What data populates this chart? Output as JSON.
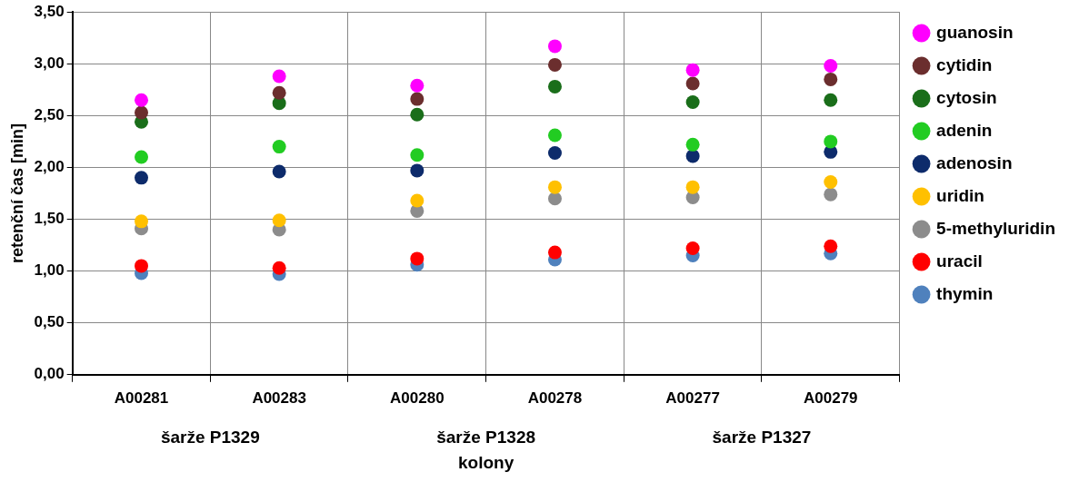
{
  "chart_data": {
    "type": "scatter",
    "xlabel": "kolony",
    "ylabel": "retenční čas [min]",
    "categories": [
      "A00281",
      "A00283",
      "A00280",
      "A00278",
      "A00277",
      "A00279"
    ],
    "series": [
      {
        "name": "guanosin",
        "color": "#ff00ff",
        "values": [
          2.65,
          2.88,
          2.79,
          3.17,
          2.94,
          2.98
        ]
      },
      {
        "name": "cytidin",
        "color": "#6b2e2e",
        "values": [
          2.53,
          2.72,
          2.66,
          2.99,
          2.81,
          2.85
        ]
      },
      {
        "name": "cytosin",
        "color": "#1a6e1a",
        "values": [
          2.44,
          2.62,
          2.51,
          2.78,
          2.63,
          2.65
        ]
      },
      {
        "name": "adenin",
        "color": "#22cc22",
        "values": [
          2.1,
          2.2,
          2.12,
          2.31,
          2.22,
          2.25
        ]
      },
      {
        "name": "adenosin",
        "color": "#0d2b6b",
        "values": [
          1.9,
          1.96,
          1.97,
          2.14,
          2.11,
          2.15
        ]
      },
      {
        "name": "uridin",
        "color": "#ffc000",
        "values": [
          1.48,
          1.49,
          1.68,
          1.81,
          1.81,
          1.86
        ]
      },
      {
        "name": "5-methyluridin",
        "color": "#8c8c8c",
        "values": [
          1.41,
          1.4,
          1.58,
          1.7,
          1.71,
          1.74
        ]
      },
      {
        "name": "uracil",
        "color": "#ff0000",
        "values": [
          1.05,
          1.03,
          1.12,
          1.18,
          1.22,
          1.24
        ]
      },
      {
        "name": "thymin",
        "color": "#4f81bd",
        "values": [
          0.98,
          0.97,
          1.06,
          1.11,
          1.15,
          1.17
        ]
      }
    ],
    "ylim": [
      0,
      3.5
    ],
    "yticks": [
      {
        "value": 0,
        "label": "0,00"
      },
      {
        "value": 0.5,
        "label": "0,50"
      },
      {
        "value": 1,
        "label": "1,00"
      },
      {
        "value": 1.5,
        "label": "1,50"
      },
      {
        "value": 2,
        "label": "2,00"
      },
      {
        "value": 2.5,
        "label": "2,50"
      },
      {
        "value": 3,
        "label": "3,00"
      },
      {
        "value": 3.5,
        "label": "3,50"
      }
    ],
    "annotations": [
      "šarže P1329",
      "šarže P1328",
      "šarže P1327"
    ],
    "grid": true,
    "legend": "right",
    "marker": "circle"
  }
}
